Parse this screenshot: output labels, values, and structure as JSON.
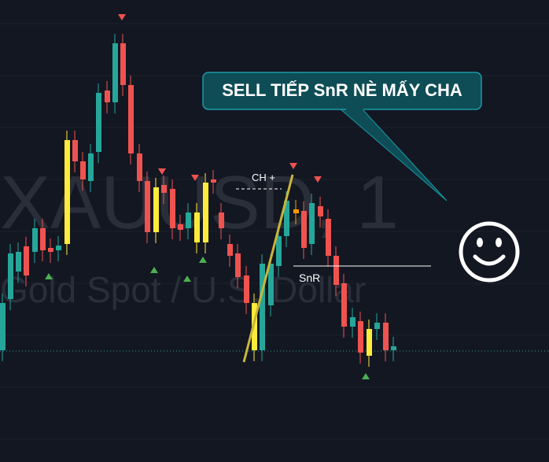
{
  "watermark": {
    "symbol": "XAUUSD, 1",
    "description": "Gold Spot / U.S. Dollar"
  },
  "annotations": {
    "ch_label": "CH +",
    "snr_label": "SnR",
    "callout": "SELL TIẾP SnR NÈ MẤY CHA"
  }
}
